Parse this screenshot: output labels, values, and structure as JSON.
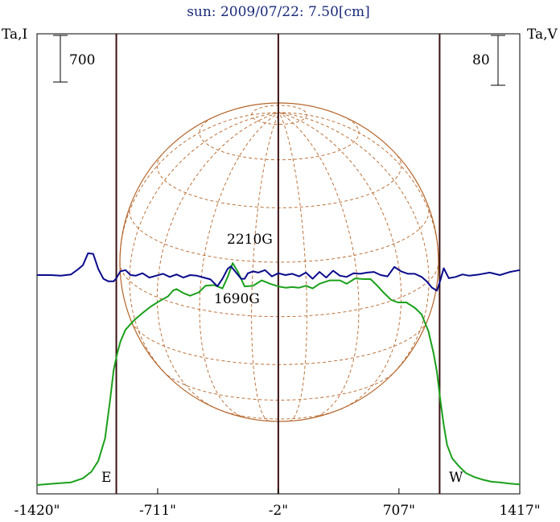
{
  "chart_data": {
    "type": "line",
    "title": "sun: 2009/07/22: 7.50[cm]",
    "y_left_label": "Ta,I",
    "y_right_label": "Ta,V",
    "scale_bar_left": "700",
    "scale_bar_right": "80",
    "limb_labels": {
      "east": "E",
      "west": "W"
    },
    "field_annotations": [
      "2210G",
      "1690G"
    ],
    "x_ticks": [
      -1420,
      -711,
      -2,
      707,
      1417
    ],
    "x_tick_labels": [
      "-1420\"",
      "-711\"",
      "-2\"",
      "707\"",
      "1417\""
    ],
    "xlim": [
      -1420,
      1417
    ],
    "vertical_markers": [
      -954,
      -2,
      946
    ],
    "grid": false,
    "colors": {
      "stokes_i": "#1aa01a",
      "stokes_v": "#0a0a8c",
      "disk": "#b5652a",
      "markers": "#3a1010",
      "title": "#1a2a7a"
    },
    "series": [
      {
        "name": "Ta,I",
        "color": "#1aa01a",
        "x": [
          -1420,
          -1320,
          -1220,
          -1150,
          -1100,
          -1060,
          -1020,
          -990,
          -970,
          -950,
          -930,
          -900,
          -850,
          -800,
          -750,
          -700,
          -650,
          -620,
          -600,
          -560,
          -520,
          -470,
          -430,
          -380,
          -330,
          -300,
          -270,
          -240,
          -200,
          -150,
          -100,
          -50,
          -2,
          40,
          80,
          120,
          160,
          200,
          240,
          300,
          360,
          400,
          450,
          500,
          540,
          580,
          620,
          660,
          700,
          750,
          800,
          840,
          880,
          910,
          930,
          950,
          970,
          990,
          1020,
          1060,
          1100,
          1150,
          1200,
          1250,
          1300,
          1360,
          1417
        ],
        "y": [
          0,
          20,
          40,
          100,
          200,
          360,
          700,
          1280,
          1720,
          1960,
          2150,
          2330,
          2470,
          2580,
          2680,
          2760,
          2830,
          2920,
          2940,
          2880,
          2840,
          2890,
          2990,
          3000,
          2950,
          3120,
          3330,
          3200,
          2980,
          2990,
          3070,
          3020,
          2980,
          2960,
          2970,
          2960,
          2990,
          2950,
          3020,
          3070,
          3070,
          3020,
          3100,
          3090,
          3090,
          2990,
          2880,
          2780,
          2740,
          2740,
          2660,
          2560,
          2310,
          1980,
          1700,
          1280,
          900,
          600,
          400,
          280,
          180,
          120,
          80,
          50,
          40,
          20,
          10
        ]
      },
      {
        "name": "Ta,V",
        "color": "#0a0a8c",
        "x": [
          -1420,
          -1340,
          -1280,
          -1220,
          -1180,
          -1150,
          -1120,
          -1090,
          -1060,
          -1030,
          -1000,
          -970,
          -954,
          -930,
          -900,
          -870,
          -840,
          -800,
          -760,
          -720,
          -680,
          -640,
          -600,
          -560,
          -520,
          -480,
          -440,
          -400,
          -360,
          -330,
          -300,
          -280,
          -250,
          -220,
          -200,
          -180,
          -150,
          -120,
          -80,
          -40,
          -2,
          40,
          80,
          120,
          160,
          200,
          240,
          280,
          320,
          360,
          400,
          440,
          480,
          520,
          560,
          600,
          640,
          680,
          720,
          760,
          800,
          840,
          870,
          900,
          930,
          946,
          970,
          1000,
          1040,
          1080,
          1120,
          1180,
          1240,
          1300,
          1360,
          1417
        ],
        "y": [
          0,
          0,
          -1,
          1,
          9,
          16,
          35,
          34,
          10,
          -6,
          -10,
          -10,
          -5,
          6,
          8,
          0,
          -1,
          3,
          -4,
          -1,
          2,
          -3,
          1,
          -4,
          0,
          -1,
          -4,
          -7,
          -18,
          -6,
          10,
          14,
          4,
          -6,
          -6,
          3,
          6,
          4,
          8,
          -2,
          3,
          0,
          2,
          -2,
          4,
          -6,
          5,
          -4,
          7,
          -1,
          -3,
          3,
          2,
          4,
          5,
          0,
          -2,
          13,
          6,
          2,
          2,
          -3,
          -10,
          -20,
          -25,
          -12,
          11,
          -5,
          -3,
          1,
          -1,
          1,
          4,
          0,
          5,
          8
        ]
      }
    ]
  }
}
